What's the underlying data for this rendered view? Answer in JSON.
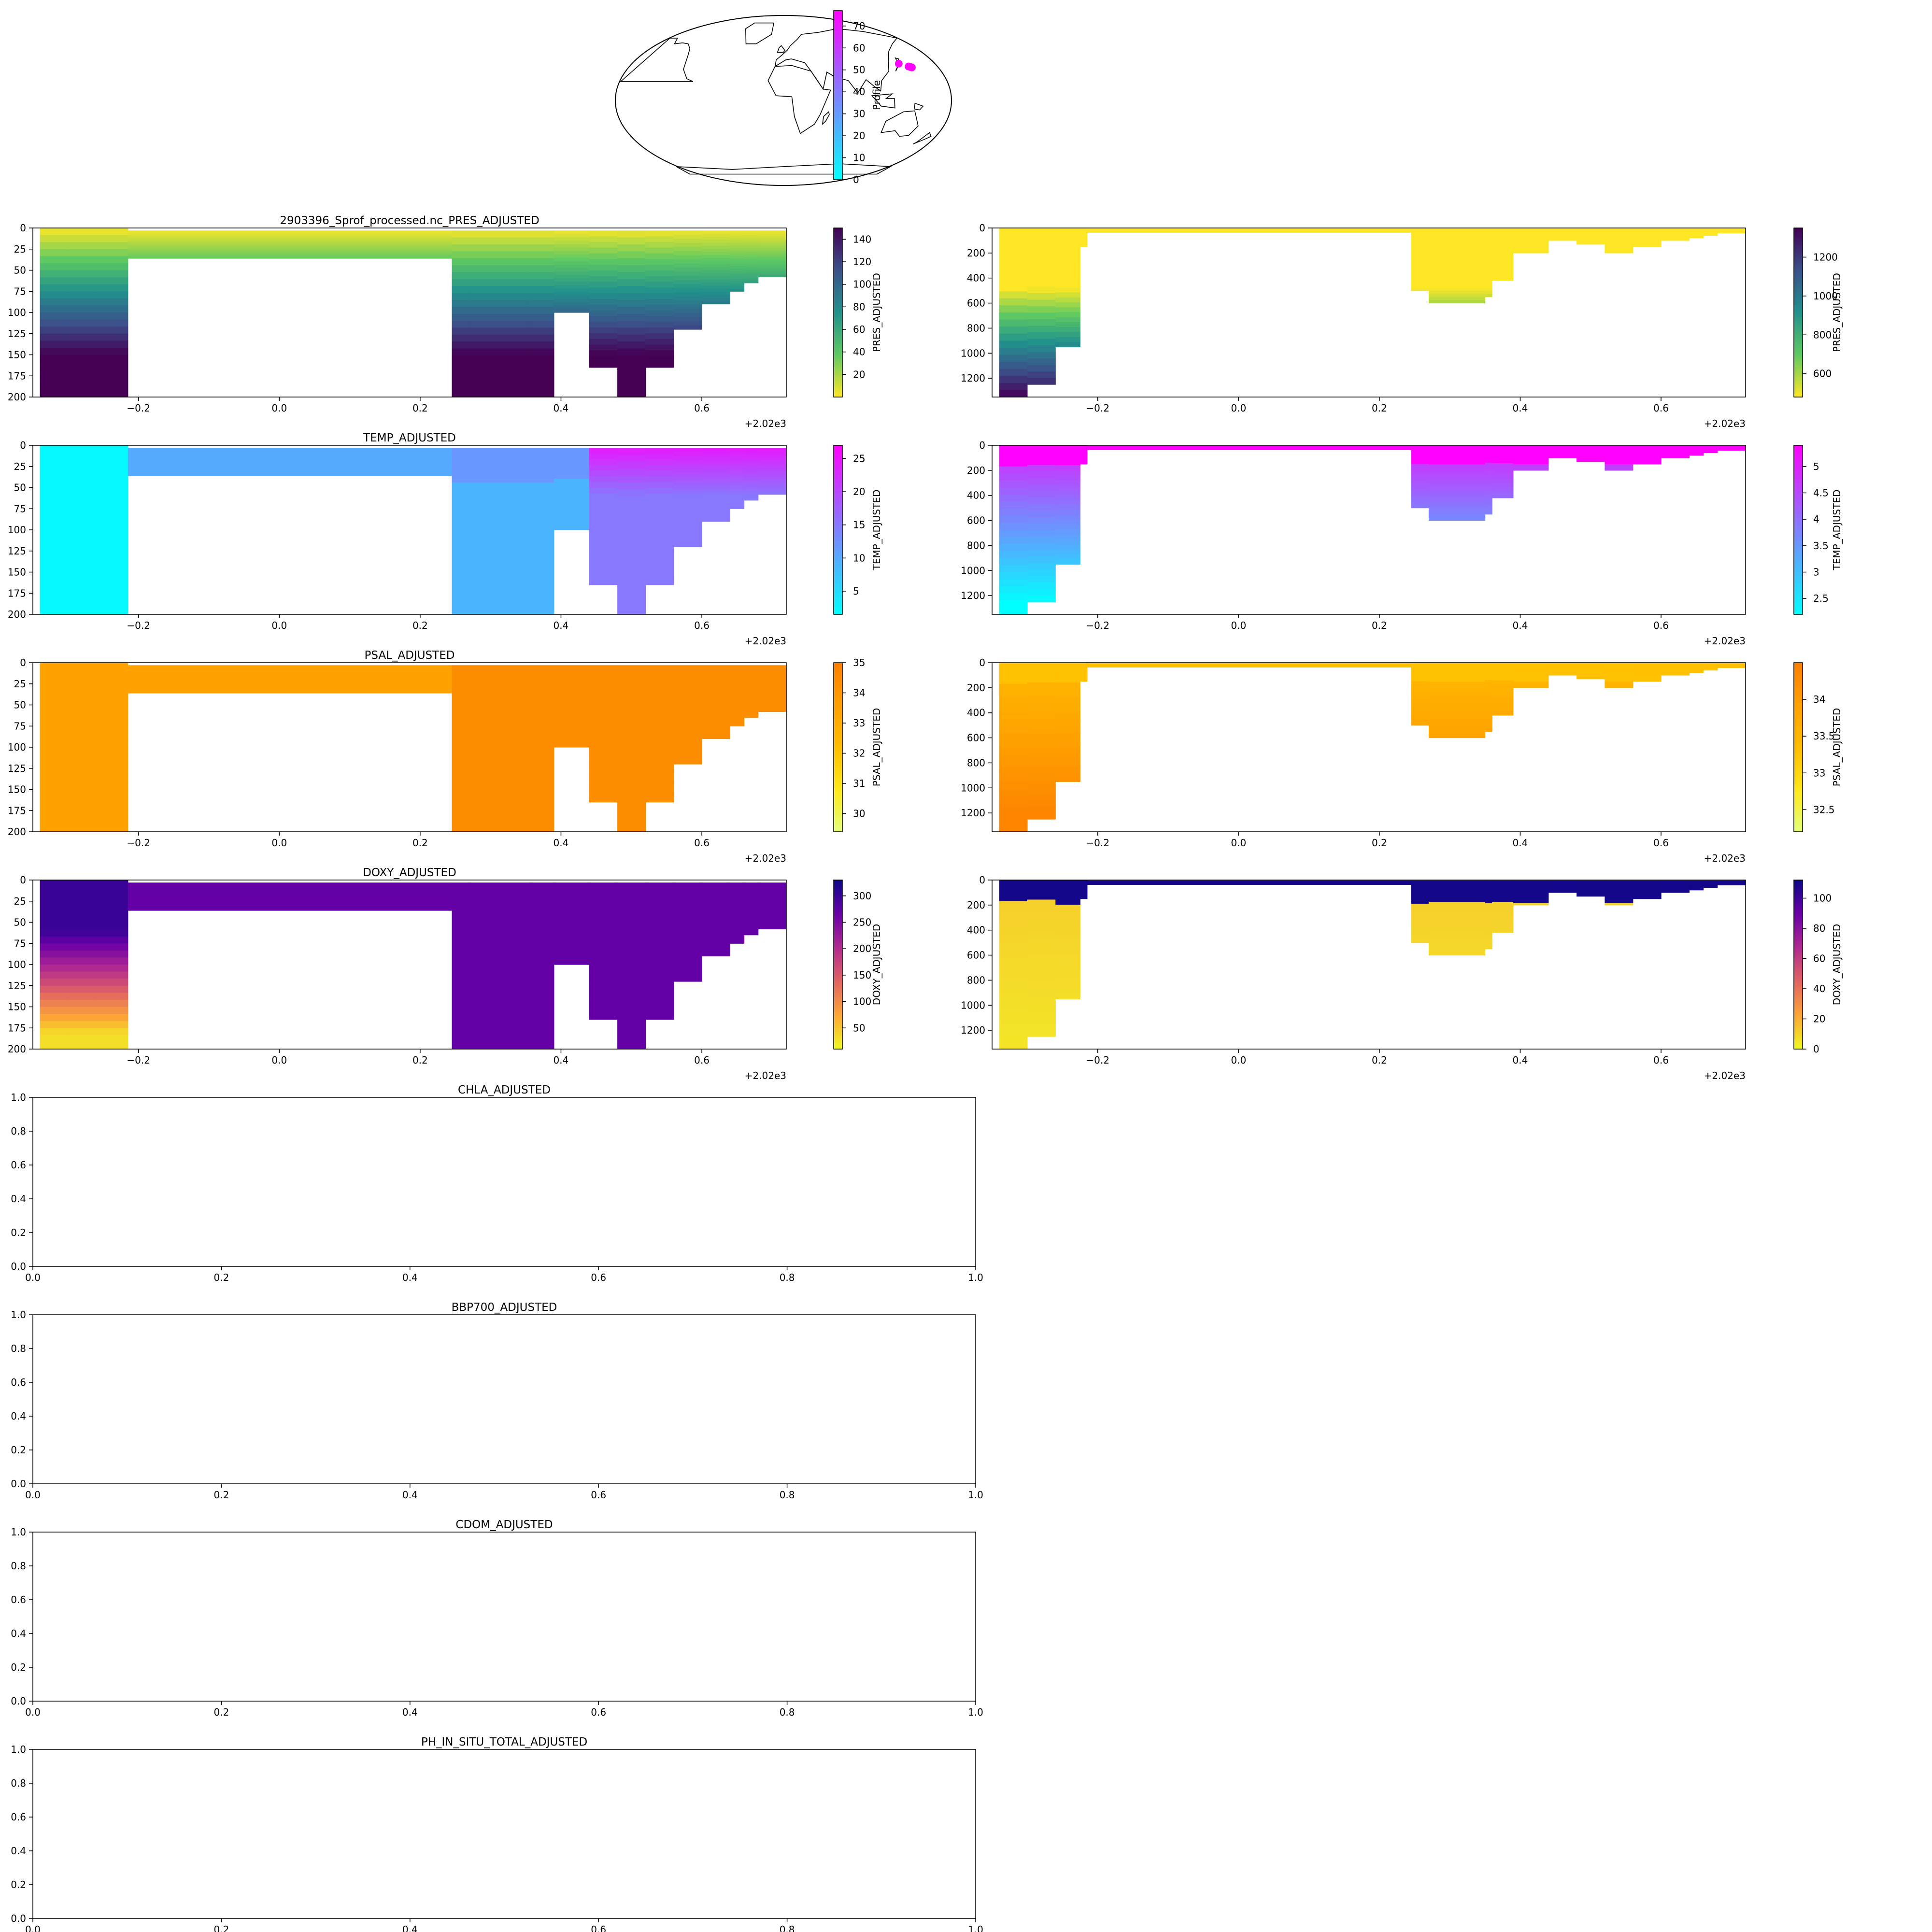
{
  "figure": {
    "map": {
      "colorbar_label": "Profile",
      "colorbar_ticks": [
        0,
        10,
        20,
        30,
        40,
        50,
        60,
        70
      ],
      "clim": [
        0,
        77
      ],
      "colormap": [
        "#00ffff",
        "#ff00ff"
      ],
      "profile_color": "#ff00ff",
      "points": [
        {
          "lon": 140,
          "lat": 39,
          "profile": 77
        },
        {
          "lon": 149,
          "lat": 36,
          "profile": 77
        },
        {
          "lon": 150.5,
          "lat": 35.5,
          "profile": 77
        },
        {
          "lon": 152,
          "lat": 35,
          "profile": 77
        }
      ]
    },
    "x_offset_label": "+2.02e3",
    "colormaps": {
      "viridis_r": [
        "#fde725",
        "#5ec962",
        "#21918c",
        "#3b528b",
        "#440154"
      ],
      "cool": [
        "#00ffff",
        "#ff00ff"
      ],
      "Wistia": [
        "#e4ff7a",
        "#ffe81a",
        "#ffbd00",
        "#ffa000",
        "#fc7f00"
      ],
      "plasma_r": [
        "#f0f921",
        "#fca636",
        "#e16462",
        "#b12a90",
        "#6a00a8",
        "#0d0887"
      ]
    },
    "section_profiles": [
      {
        "x": -0.34,
        "surface": 0,
        "shallow_max": 200,
        "deep_max": 1350
      },
      {
        "x": -0.3,
        "surface": 0,
        "shallow_max": 200,
        "deep_max": 1250
      },
      {
        "x": -0.26,
        "surface": 0,
        "shallow_max": 200,
        "deep_max": 950
      },
      {
        "x": -0.225,
        "surface": 0,
        "shallow_max": 200,
        "deep_max": 150
      },
      {
        "x": -0.215,
        "surface": 3,
        "shallow_max": 36,
        "deep_max": 36
      },
      {
        "x": 0.245,
        "surface": 3,
        "shallow_max": 200,
        "deep_max": 500
      },
      {
        "x": 0.27,
        "surface": 3,
        "shallow_max": 200,
        "deep_max": 600
      },
      {
        "x": 0.35,
        "surface": 3,
        "shallow_max": 200,
        "deep_max": 550
      },
      {
        "x": 0.36,
        "surface": 3,
        "shallow_max": 200,
        "deep_max": 420
      },
      {
        "x": 0.39,
        "surface": 3,
        "shallow_max": 100,
        "deep_max": 200
      },
      {
        "x": 0.44,
        "surface": 3,
        "shallow_max": 165,
        "deep_max": 100
      },
      {
        "x": 0.48,
        "surface": 3,
        "shallow_max": 200,
        "deep_max": 130
      },
      {
        "x": 0.52,
        "surface": 3,
        "shallow_max": 165,
        "deep_max": 200
      },
      {
        "x": 0.56,
        "surface": 3,
        "shallow_max": 120,
        "deep_max": 150
      },
      {
        "x": 0.6,
        "surface": 3,
        "shallow_max": 90,
        "deep_max": 100
      },
      {
        "x": 0.64,
        "surface": 3,
        "shallow_max": 75,
        "deep_max": 80
      },
      {
        "x": 0.66,
        "surface": 3,
        "shallow_max": 65,
        "deep_max": 60
      },
      {
        "x": 0.68,
        "surface": 3,
        "shallow_max": 58,
        "deep_max": 40
      },
      {
        "x": 0.72,
        "surface": 3,
        "shallow_max": 58,
        "deep_max": 40
      }
    ],
    "rows": [
      {
        "title": "2903396_Sprof_processed.nc_PRES_ADJUSTED",
        "variable": "PRES_ADJUSTED",
        "cmap": "viridis_r",
        "shallow_clim": [
          0,
          150
        ],
        "shallow_cbar_ticks": [
          20,
          40,
          60,
          80,
          100,
          120,
          140
        ],
        "deep_clim": [
          480,
          1350
        ],
        "deep_cbar_ticks": [
          600,
          800,
          1000,
          1200
        ]
      },
      {
        "title": "TEMP_ADJUSTED",
        "variable": "TEMP_ADJUSTED",
        "cmap": "cool",
        "shallow_clim": [
          1.5,
          27
        ],
        "shallow_cbar_ticks": [
          5,
          10,
          15,
          20,
          25
        ],
        "deep_clim": [
          2.2,
          5.4
        ],
        "deep_cbar_ticks": [
          2.5,
          3.0,
          3.5,
          4.0,
          4.5,
          5.0
        ]
      },
      {
        "title": "PSAL_ADJUSTED",
        "variable": "PSAL_ADJUSTED",
        "cmap": "Wistia",
        "shallow_clim": [
          29.4,
          35
        ],
        "shallow_cbar_ticks": [
          30,
          31,
          32,
          33,
          34,
          35
        ],
        "deep_clim": [
          32.2,
          34.5
        ],
        "deep_cbar_ticks": [
          32.5,
          33.0,
          33.5,
          34.0
        ]
      },
      {
        "title": "DOXY_ADJUSTED",
        "variable": "DOXY_ADJUSTED",
        "cmap": "plasma_r",
        "shallow_clim": [
          10,
          330
        ],
        "shallow_cbar_ticks": [
          50,
          100,
          150,
          200,
          250,
          300
        ],
        "deep_clim": [
          0,
          112
        ],
        "deep_cbar_ticks": [
          0,
          20,
          40,
          60,
          80,
          100
        ]
      }
    ],
    "section_x_range": [
      -0.35,
      0.72
    ],
    "section_x_ticks": [
      -0.2,
      0.0,
      0.2,
      0.4,
      0.6
    ],
    "shallow_y_range": [
      0,
      200
    ],
    "shallow_y_ticks": [
      0,
      25,
      50,
      75,
      100,
      125,
      150,
      175,
      200
    ],
    "deep_y_range": [
      0,
      1350
    ],
    "deep_y_ticks": [
      0,
      200,
      400,
      600,
      800,
      1000,
      1200
    ],
    "empty_panels": [
      {
        "title": "CHLA_ADJUSTED"
      },
      {
        "title": "BBP700_ADJUSTED"
      },
      {
        "title": "CDOM_ADJUSTED"
      },
      {
        "title": "PH_IN_SITU_TOTAL_ADJUSTED"
      }
    ],
    "empty_ticks": [
      0.0,
      0.2,
      0.4,
      0.6,
      0.8,
      1.0
    ]
  }
}
